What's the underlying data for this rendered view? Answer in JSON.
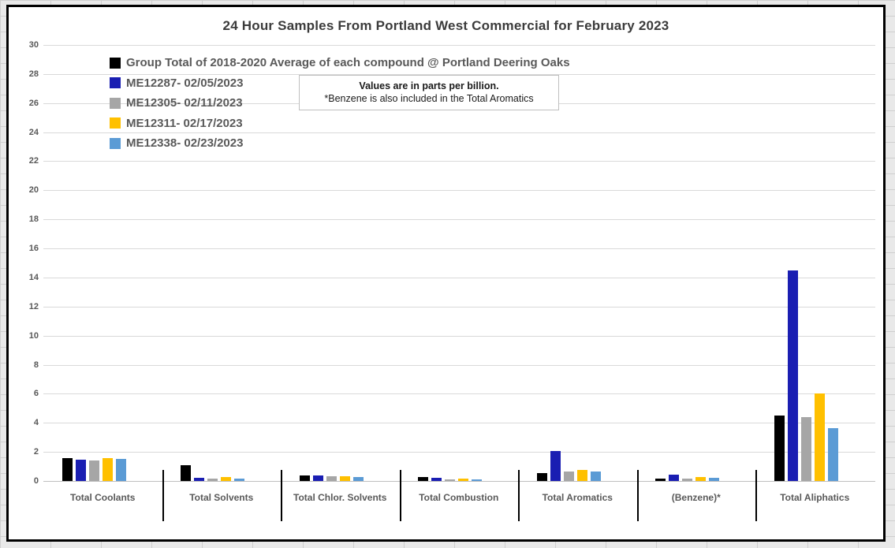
{
  "chart_data": {
    "type": "bar",
    "title": "24 Hour Samples From Portland West Commercial for February 2023",
    "ylabel": "",
    "xlabel": "",
    "ylim": [
      0,
      30
    ],
    "ytick_step": 2,
    "grid": true,
    "legend_position": "top-left",
    "annotation": {
      "line1": "Values are in parts per billion.",
      "line2": "*Benzene is also included in the Total Aromatics"
    },
    "categories": [
      "Total Coolants",
      "Total Solvents",
      "Total Chlor. Solvents",
      "Total Combustion",
      "Total Aromatics",
      "(Benzene)*",
      "Total Aliphatics"
    ],
    "series": [
      {
        "name": "Group Total of 2018-2020 Average of each compound @ Portland Deering Oaks",
        "color": "#000000",
        "values": [
          1.55,
          1.1,
          0.4,
          0.25,
          0.55,
          0.15,
          4.5
        ]
      },
      {
        "name": "ME12287- 02/05/2023",
        "color": "#1a1eb2",
        "values": [
          1.45,
          0.22,
          0.4,
          0.2,
          2.05,
          0.45,
          14.5
        ]
      },
      {
        "name": "ME12305- 02/11/2023",
        "color": "#a6a6a6",
        "values": [
          1.4,
          0.18,
          0.3,
          0.1,
          0.65,
          0.15,
          4.4
        ]
      },
      {
        "name": "ME12311- 02/17/2023",
        "color": "#ffc000",
        "values": [
          1.55,
          0.28,
          0.33,
          0.15,
          0.75,
          0.25,
          6.0
        ]
      },
      {
        "name": "ME12338- 02/23/2023",
        "color": "#5b9bd5",
        "values": [
          1.5,
          0.18,
          0.25,
          0.13,
          0.65,
          0.2,
          3.65
        ]
      }
    ]
  }
}
